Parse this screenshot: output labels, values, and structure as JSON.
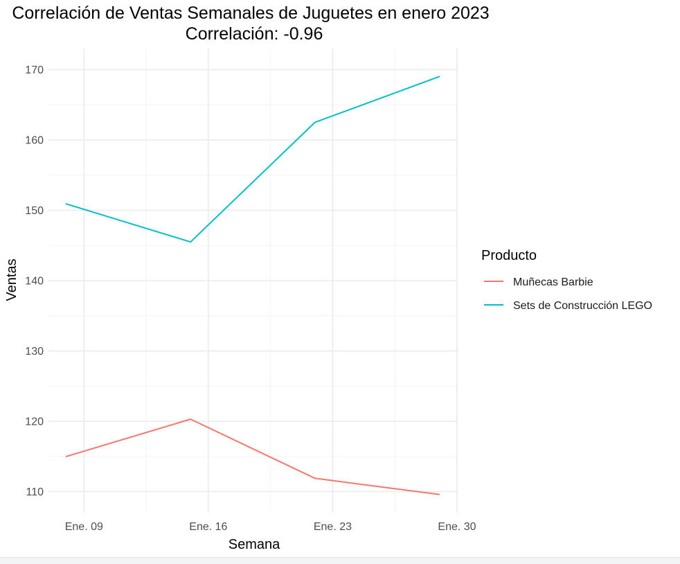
{
  "chart_data": {
    "type": "line",
    "title": "Correlación de Ventas Semanales de Juguetes en enero 2023",
    "subtitle": "Correlación: -0.96",
    "xlabel": "Semana",
    "ylabel": "Ventas",
    "x": [
      "2023-01-08",
      "2023-01-15",
      "2023-01-22",
      "2023-01-29"
    ],
    "x_ticks": [
      "Ene. 09",
      "Ene. 16",
      "Ene. 23",
      "Ene. 30"
    ],
    "x_tick_dates": [
      "2023-01-09",
      "2023-01-16",
      "2023-01-23",
      "2023-01-30"
    ],
    "xlim": [
      "2023-01-07",
      "2023-01-30"
    ],
    "y_ticks": [
      110,
      120,
      130,
      140,
      150,
      160,
      170
    ],
    "ylim": [
      107,
      173
    ],
    "series": [
      {
        "name": "Muñecas Barbie",
        "color": "#F8766D",
        "values": [
          115.0,
          120.3,
          111.9,
          109.6
        ]
      },
      {
        "name": "Sets de Construcción LEGO",
        "color": "#00BFC4",
        "values": [
          150.9,
          145.5,
          162.5,
          169.0
        ]
      }
    ],
    "legend": {
      "title": "Producto",
      "position": "right"
    },
    "grid": true
  }
}
